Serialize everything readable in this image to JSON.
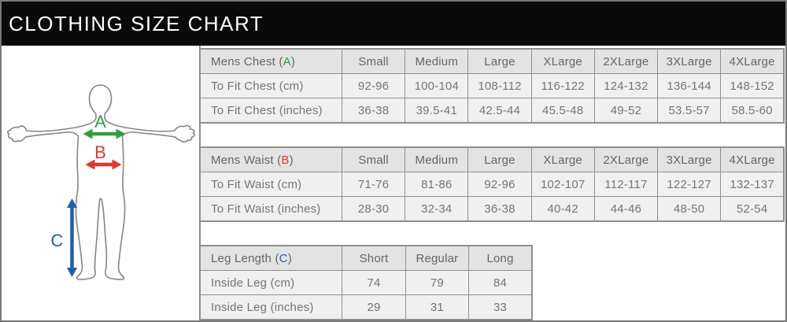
{
  "header": {
    "title": "CLOTHING SIZE CHART"
  },
  "diagram": {
    "chest": {
      "label": "A",
      "color": "#2f9e41"
    },
    "waist": {
      "label": "B",
      "color": "#e2372b"
    },
    "leg": {
      "label": "C",
      "color": "#1b5eb0"
    },
    "outline_color": "#858585"
  },
  "tables": [
    {
      "name": "mens-chest",
      "title_prefix": "Mens Chest (",
      "letter": "A",
      "title_suffix": ")",
      "letter_color": "#2f9e41",
      "columns": [
        "Small",
        "Medium",
        "Large",
        "XLarge",
        "2XLarge",
        "3XLarge",
        "4XLarge"
      ],
      "rows": [
        {
          "label": "To Fit Chest (cm)",
          "values": [
            "92-96",
            "100-104",
            "108-112",
            "116-122",
            "124-132",
            "136-144",
            "148-152"
          ]
        },
        {
          "label": "To Fit Chest (inches)",
          "values": [
            "36-38",
            "39.5-41",
            "42.5-44",
            "45.5-48",
            "49-52",
            "53.5-57",
            "58.5-60"
          ]
        }
      ]
    },
    {
      "name": "mens-waist",
      "title_prefix": "Mens Waist (",
      "letter": "B",
      "title_suffix": ")",
      "letter_color": "#e2372b",
      "columns": [
        "Small",
        "Medium",
        "Large",
        "XLarge",
        "2XLarge",
        "3XLarge",
        "4XLarge"
      ],
      "rows": [
        {
          "label": "To Fit Waist (cm)",
          "values": [
            "71-76",
            "81-86",
            "92-96",
            "102-107",
            "112-117",
            "122-127",
            "132-137"
          ]
        },
        {
          "label": "To Fit Waist (inches)",
          "values": [
            "28-30",
            "32-34",
            "36-38",
            "40-42",
            "44-46",
            "48-50",
            "52-54"
          ]
        }
      ]
    },
    {
      "name": "leg-length",
      "title_prefix": "Leg Length (",
      "letter": "C",
      "title_suffix": ")",
      "letter_color": "#1b5eb0",
      "columns": [
        "Short",
        "Regular",
        "Long"
      ],
      "rows": [
        {
          "label": "Inside Leg (cm)",
          "values": [
            "74",
            "79",
            "84"
          ]
        },
        {
          "label": "Inside Leg (inches)",
          "values": [
            "29",
            "31",
            "33"
          ]
        }
      ]
    }
  ],
  "chart_data": [
    {
      "type": "table",
      "title": "Mens Chest (A)",
      "columns": [
        "Small",
        "Medium",
        "Large",
        "XLarge",
        "2XLarge",
        "3XLarge",
        "4XLarge"
      ],
      "rows": [
        {
          "label": "To Fit Chest (cm)",
          "values": [
            "92-96",
            "100-104",
            "108-112",
            "116-122",
            "124-132",
            "136-144",
            "148-152"
          ]
        },
        {
          "label": "To Fit Chest (inches)",
          "values": [
            "36-38",
            "39.5-41",
            "42.5-44",
            "45.5-48",
            "49-52",
            "53.5-57",
            "58.5-60"
          ]
        }
      ]
    },
    {
      "type": "table",
      "title": "Mens Waist (B)",
      "columns": [
        "Small",
        "Medium",
        "Large",
        "XLarge",
        "2XLarge",
        "3XLarge",
        "4XLarge"
      ],
      "rows": [
        {
          "label": "To Fit Waist (cm)",
          "values": [
            "71-76",
            "81-86",
            "92-96",
            "102-107",
            "112-117",
            "122-127",
            "132-137"
          ]
        },
        {
          "label": "To Fit Waist (inches)",
          "values": [
            "28-30",
            "32-34",
            "36-38",
            "40-42",
            "44-46",
            "48-50",
            "52-54"
          ]
        }
      ]
    },
    {
      "type": "table",
      "title": "Leg Length (C)",
      "columns": [
        "Short",
        "Regular",
        "Long"
      ],
      "rows": [
        {
          "label": "Inside Leg (cm)",
          "values": [
            "74",
            "79",
            "84"
          ]
        },
        {
          "label": "Inside Leg (inches)",
          "values": [
            "29",
            "31",
            "33"
          ]
        }
      ]
    }
  ]
}
